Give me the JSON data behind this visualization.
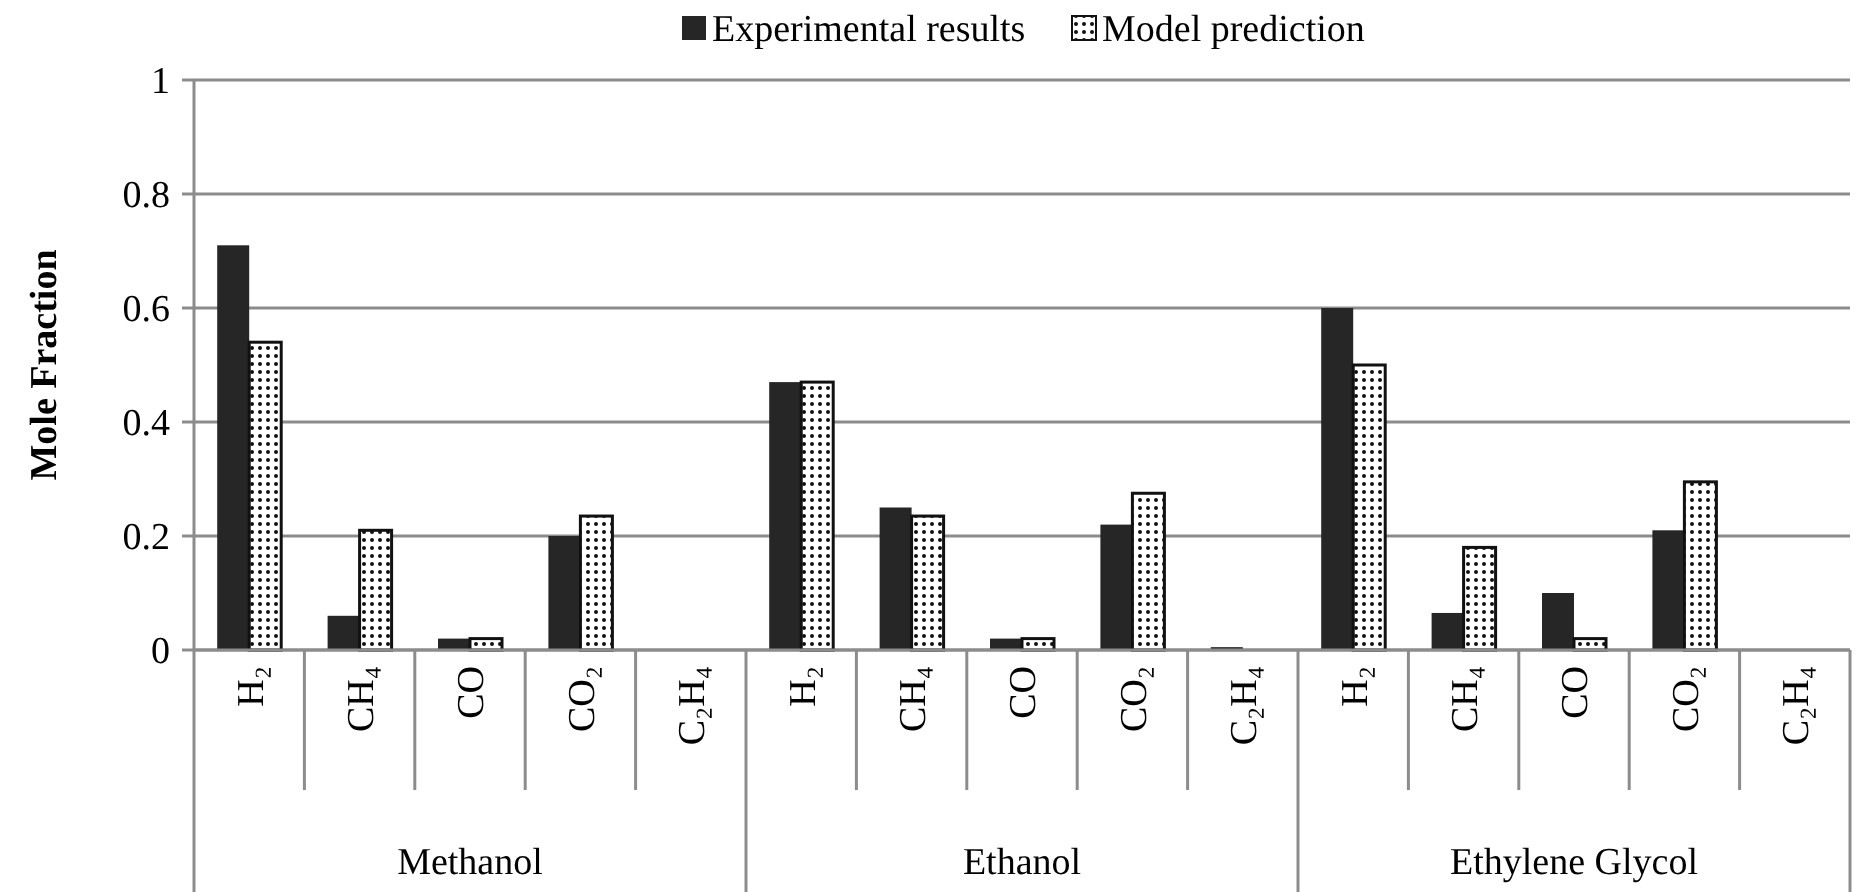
{
  "chart_data": {
    "type": "bar",
    "ylabel": "Mole Fraction",
    "categories": [
      "H₂",
      "CH₄",
      "CO",
      "CO₂",
      "C₂H₄",
      "H₂",
      "CH₄",
      "CO",
      "CO₂",
      "C₂H₄",
      "H₂",
      "CH₄",
      "CO",
      "CO₂",
      "C₂H₄"
    ],
    "annotations": [
      "Methanol",
      "Ethanol",
      "Ethylene Glycol"
    ],
    "series": [
      {
        "name": "Experimental results",
        "color": "#262626",
        "values": [
          0.71,
          0.06,
          0.02,
          0.2,
          0,
          0.47,
          0.25,
          0.02,
          0.22,
          0.005,
          0.6,
          0.065,
          0.1,
          0.21,
          0
        ]
      },
      {
        "name": "Model prediction",
        "color": "#111111",
        "values": [
          0.54,
          0.21,
          0.02,
          0.235,
          0,
          0.47,
          0.235,
          0.02,
          0.275,
          0,
          0.5,
          0.18,
          0.02,
          0.295,
          0
        ]
      }
    ],
    "ylim": [
      0,
      1
    ],
    "yticks": [
      0,
      0.2,
      0.4,
      0.6,
      0.8,
      1
    ],
    "grid": "y",
    "legend": "top"
  }
}
